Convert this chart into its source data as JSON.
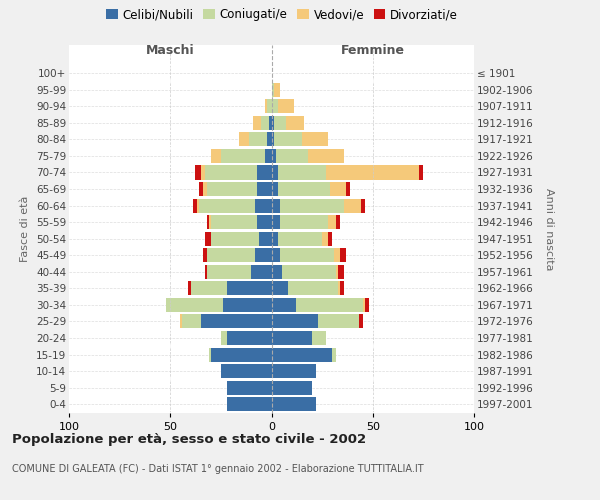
{
  "age_groups": [
    "0-4",
    "5-9",
    "10-14",
    "15-19",
    "20-24",
    "25-29",
    "30-34",
    "35-39",
    "40-44",
    "45-49",
    "50-54",
    "55-59",
    "60-64",
    "65-69",
    "70-74",
    "75-79",
    "80-84",
    "85-89",
    "90-94",
    "95-99",
    "100+"
  ],
  "birth_years": [
    "1997-2001",
    "1992-1996",
    "1987-1991",
    "1982-1986",
    "1977-1981",
    "1972-1976",
    "1967-1971",
    "1962-1966",
    "1957-1961",
    "1952-1956",
    "1947-1951",
    "1942-1946",
    "1937-1941",
    "1932-1936",
    "1927-1931",
    "1922-1926",
    "1917-1921",
    "1912-1916",
    "1907-1911",
    "1902-1906",
    "≤ 1901"
  ],
  "colors": {
    "celibi": "#3a6ea5",
    "coniugati": "#c5d9a0",
    "vedovi": "#f5c97a",
    "divorziati": "#cc1111"
  },
  "maschi": {
    "celibi": [
      22,
      22,
      25,
      30,
      22,
      35,
      24,
      22,
      10,
      8,
      6,
      7,
      8,
      7,
      7,
      3,
      2,
      1,
      0,
      0,
      0
    ],
    "coniugati": [
      0,
      0,
      0,
      1,
      3,
      9,
      28,
      18,
      22,
      24,
      24,
      23,
      28,
      25,
      26,
      22,
      9,
      4,
      2,
      0,
      0
    ],
    "vedovi": [
      0,
      0,
      0,
      0,
      0,
      1,
      0,
      0,
      0,
      0,
      0,
      1,
      1,
      2,
      2,
      5,
      5,
      4,
      1,
      0,
      0
    ],
    "divorziati": [
      0,
      0,
      0,
      0,
      0,
      0,
      0,
      1,
      1,
      2,
      3,
      1,
      2,
      2,
      3,
      0,
      0,
      0,
      0,
      0,
      0
    ]
  },
  "femmine": {
    "celibi": [
      22,
      20,
      22,
      30,
      20,
      23,
      12,
      8,
      5,
      4,
      3,
      4,
      4,
      3,
      3,
      2,
      1,
      1,
      0,
      0,
      0
    ],
    "coniugati": [
      0,
      0,
      0,
      2,
      7,
      20,
      33,
      25,
      27,
      27,
      22,
      24,
      32,
      26,
      24,
      16,
      14,
      6,
      3,
      1,
      0
    ],
    "vedovi": [
      0,
      0,
      0,
      0,
      0,
      0,
      1,
      1,
      1,
      3,
      3,
      4,
      8,
      8,
      46,
      18,
      13,
      9,
      8,
      3,
      0
    ],
    "divorziati": [
      0,
      0,
      0,
      0,
      0,
      2,
      2,
      2,
      3,
      3,
      2,
      2,
      2,
      2,
      2,
      0,
      0,
      0,
      0,
      0,
      0
    ]
  },
  "xlim": 100,
  "title": "Popolazione per età, sesso e stato civile - 2002",
  "subtitle": "COMUNE DI GALEATA (FC) - Dati ISTAT 1° gennaio 2002 - Elaborazione TUTTITALIA.IT",
  "ylabel_left": "Fasce di età",
  "ylabel_right": "Anni di nascita",
  "xlabel_maschi": "Maschi",
  "xlabel_femmine": "Femmine",
  "bg_color": "#f0f0f0",
  "plot_bg": "#ffffff"
}
